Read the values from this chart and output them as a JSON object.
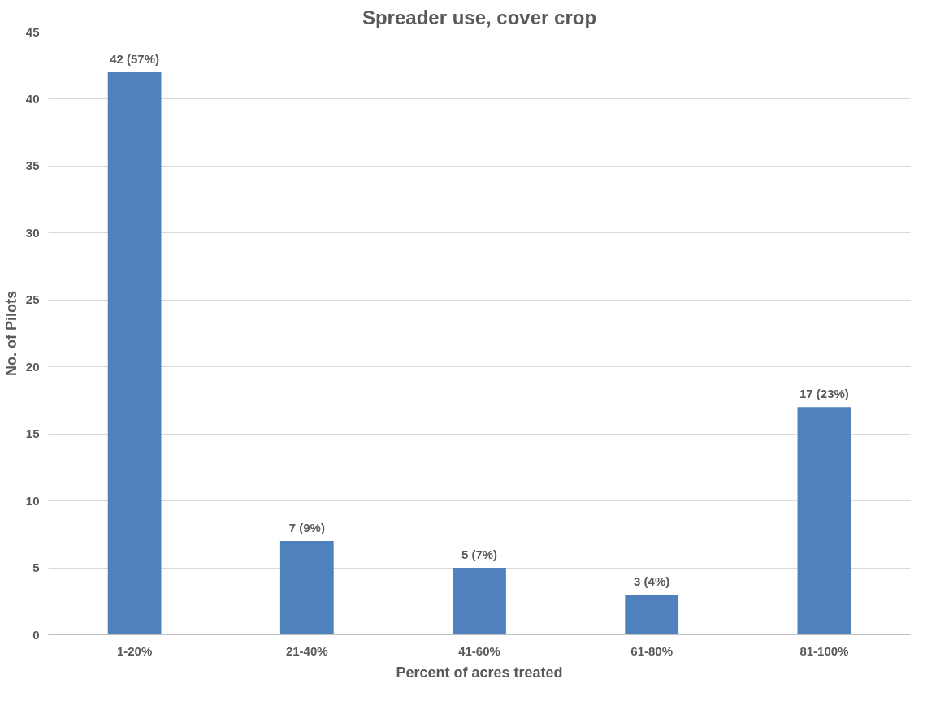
{
  "chart_data": {
    "type": "bar",
    "title": "Spreader use, cover crop",
    "xlabel": "Percent of acres treated",
    "ylabel": "No. of Pilots",
    "categories": [
      "1-20%",
      "21-40%",
      "41-60%",
      "61-80%",
      "81-100%"
    ],
    "values": [
      42,
      7,
      5,
      3,
      17
    ],
    "color": "#4f81bd",
    "value_labels": [
      "42 (57%)",
      "7 (9%)",
      "5 (7%)",
      "3 (4%)",
      "17 (23%)"
    ],
    "ylim": [
      0,
      45
    ],
    "yticks": [
      0,
      5,
      10,
      15,
      20,
      25,
      30,
      35,
      40,
      45
    ],
    "grid": "y"
  }
}
